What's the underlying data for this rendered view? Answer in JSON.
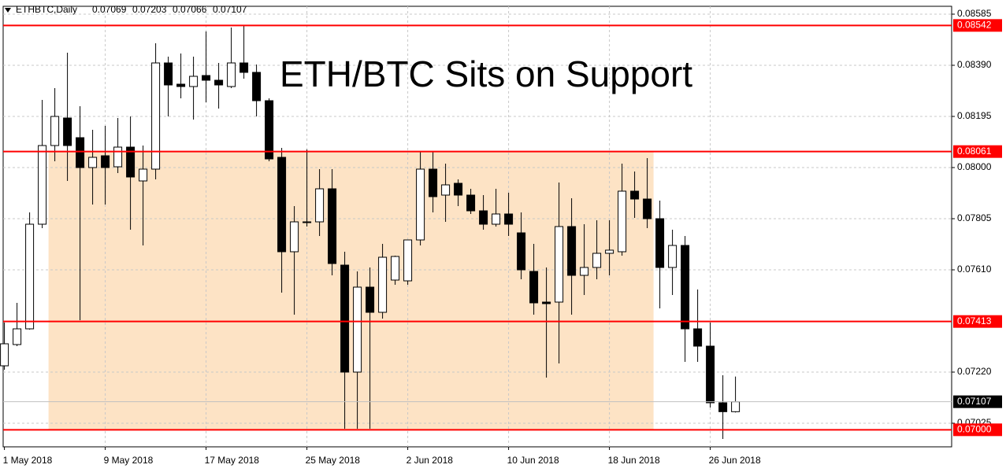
{
  "chart_data": {
    "type": "candlestick",
    "symbol": "ETHBTC,Daily",
    "header_values": [
      0.07069,
      0.07203,
      0.07066,
      0.07107
    ],
    "annotation": "ETH/BTC Sits on Support",
    "categories": [
      "1 May 2018",
      null,
      null,
      null,
      null,
      null,
      null,
      null,
      "9 May 2018",
      null,
      null,
      null,
      null,
      null,
      null,
      null,
      "17 May 2018",
      null,
      null,
      null,
      null,
      null,
      null,
      null,
      "25 May 2018",
      null,
      null,
      null,
      null,
      null,
      null,
      null,
      "2 Jun 2018",
      null,
      null,
      null,
      null,
      null,
      null,
      null,
      "10 Jun 2018",
      null,
      null,
      null,
      null,
      null,
      null,
      null,
      "18 Jun 2018",
      null,
      null,
      null,
      null,
      null,
      null,
      null,
      "26 Jun 2018",
      null,
      null
    ],
    "open": [
      0.07244,
      0.07325,
      0.07385,
      0.07784,
      0.08084,
      0.08189,
      0.08114,
      0.08,
      0.08045,
      0.08003,
      0.08078,
      0.07949,
      0.07994,
      0.08399,
      0.08318,
      0.08309,
      0.08351,
      0.08333,
      0.08309,
      0.08399,
      0.08363,
      0.08255,
      0.08039,
      0.07679,
      0.07793,
      0.07793,
      0.07919,
      0.07628,
      0.0722,
      0.07544,
      0.07448,
      0.07571,
      0.07568,
      0.07724,
      0.07994,
      0.07895,
      0.0794,
      0.07895,
      0.07835,
      0.07784,
      0.07823,
      0.07751,
      0.07604,
      0.07487,
      0.07487,
      0.07775,
      0.07589,
      0.07619,
      0.07673,
      0.07679,
      0.0791,
      0.0788,
      0.07805,
      0.07619,
      0.07703,
      0.07385,
      0.07319,
      0.07103,
      0.07069
    ],
    "high": [
      0.07409,
      0.07484,
      0.07829,
      0.08258,
      0.08303,
      0.08438,
      0.08234,
      0.08144,
      0.08159,
      0.08189,
      0.08195,
      0.08084,
      0.08474,
      0.08423,
      0.08435,
      0.08423,
      0.08519,
      0.08399,
      0.08534,
      0.0854,
      0.08393,
      0.08264,
      0.08075,
      0.07853,
      0.08069,
      0.07994,
      0.07994,
      0.07679,
      0.07604,
      0.07619,
      0.07709,
      0.07664,
      0.07724,
      0.0806,
      0.08063,
      0.08015,
      0.07955,
      0.07919,
      0.07895,
      0.07919,
      0.07904,
      0.07829,
      0.07709,
      0.07619,
      0.07943,
      0.07883,
      0.07784,
      0.07799,
      0.07799,
      0.08015,
      0.07985,
      0.08036,
      0.07874,
      0.07763,
      0.07739,
      0.07535,
      0.07409,
      0.07208,
      0.07203
    ],
    "low": [
      0.07229,
      0.07319,
      0.07382,
      0.07769,
      0.08024,
      0.07949,
      0.07418,
      0.07859,
      0.07859,
      0.07979,
      0.07763,
      0.07703,
      0.07955,
      0.08195,
      0.08264,
      0.08183,
      0.08249,
      0.08225,
      0.08303,
      0.08339,
      0.08195,
      0.08024,
      0.07523,
      0.07439,
      0.07775,
      0.07739,
      0.07589,
      0.07004,
      0.07004,
      0.07004,
      0.07424,
      0.07553,
      0.07553,
      0.07703,
      0.07829,
      0.07793,
      0.07853,
      0.07823,
      0.07763,
      0.07775,
      0.07739,
      0.07574,
      0.07439,
      0.07199,
      0.07253,
      0.07439,
      0.07514,
      0.07574,
      0.07589,
      0.07664,
      0.07808,
      0.07769,
      0.07463,
      0.07514,
      0.07259,
      0.07259,
      0.07085,
      0.06965,
      0.07066
    ],
    "close": [
      0.07328,
      0.07385,
      0.07784,
      0.08084,
      0.08195,
      0.08084,
      0.08,
      0.08039,
      0.08,
      0.08078,
      0.07964,
      0.07994,
      0.08399,
      0.08315,
      0.08309,
      0.08348,
      0.08333,
      0.08315,
      0.08399,
      0.08363,
      0.08255,
      0.08033,
      0.07679,
      0.07793,
      0.0779,
      0.07919,
      0.07634,
      0.0722,
      0.07544,
      0.07448,
      0.07658,
      0.07661,
      0.07724,
      0.07994,
      0.07889,
      0.07934,
      0.07895,
      0.07835,
      0.07784,
      0.07823,
      0.07784,
      0.0761,
      0.07484,
      0.07481,
      0.07775,
      0.07589,
      0.07619,
      0.07673,
      0.07685,
      0.0791,
      0.0788,
      0.07805,
      0.07619,
      0.07703,
      0.07385,
      0.07319,
      0.07103,
      0.07069,
      0.07107
    ],
    "up_color": "#ffffff",
    "down_color": "#000000",
    "xlim": [
      -0.1,
      75.15
    ],
    "ylim": [
      0.06935,
      0.08615
    ],
    "yticks": [
      0.08585,
      {
        "value": 0.0839,
        "label": "0.08390"
      },
      0.08195,
      {
        "value": 0.08,
        "label": "0.08000"
      },
      0.07805,
      {
        "value": 0.0761,
        "label": "0.07610"
      },
      {
        "value": 0.0722,
        "label": "0.07220"
      },
      0.07025
    ],
    "levels": [
      0.08542,
      0.08061,
      0.07413,
      {
        "value": 0.07,
        "label": "0.07000"
      }
    ],
    "level_color": "#ff0000",
    "last_price": 0.07107,
    "zone": {
      "from": 4,
      "to": 52,
      "ylim": [
        0.07,
        0.08061
      ],
      "color": "#fde3c5"
    },
    "grid": true
  }
}
